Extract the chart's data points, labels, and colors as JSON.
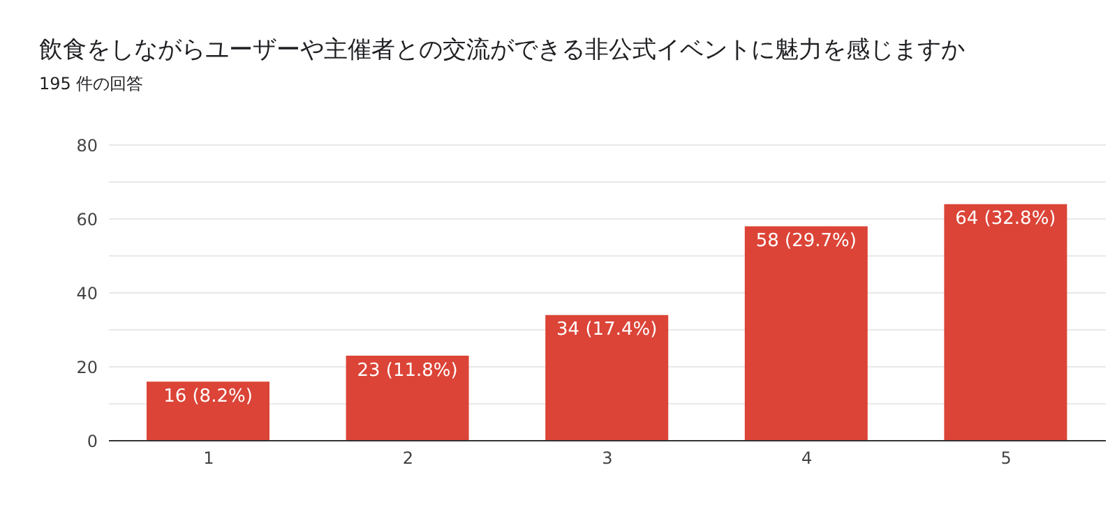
{
  "chart_data": {
    "type": "bar",
    "title": "飲食をしながらユーザーや主催者との交流ができる非公式イベントに魅力を感じますか",
    "subtitle": "195 件の回答",
    "categories": [
      "1",
      "2",
      "3",
      "4",
      "5"
    ],
    "values": [
      16,
      23,
      34,
      58,
      64
    ],
    "value_labels": [
      "16 (8.2%)",
      "23 (11.8%)",
      "34 (17.4%)",
      "58 (29.7%)",
      "64 (32.8%)"
    ],
    "color": "#db4437",
    "ylim": [
      0,
      80
    ],
    "yticks": [
      0,
      {
        "value": 10,
        "label": null
      },
      20,
      {
        "value": 30,
        "label": null
      },
      40,
      {
        "value": 50,
        "label": null
      },
      60,
      {
        "value": 70,
        "label": null
      },
      80
    ],
    "grid": "y",
    "legend": false
  }
}
